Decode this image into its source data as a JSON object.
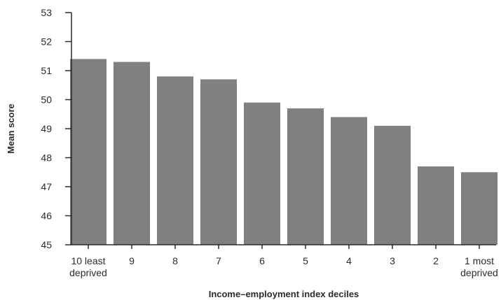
{
  "chart_data": {
    "type": "bar",
    "xlabel": "Income–employment index deciles",
    "ylabel": "Mean score",
    "ylim": [
      45,
      53
    ],
    "yticks": [
      45,
      46,
      47,
      48,
      49,
      50,
      51,
      52,
      53
    ],
    "grid": false,
    "categories": [
      [
        "10 least",
        "deprived"
      ],
      [
        "9"
      ],
      [
        "8"
      ],
      [
        "7"
      ],
      [
        "6"
      ],
      [
        "5"
      ],
      [
        "4"
      ],
      [
        "3"
      ],
      [
        "2"
      ],
      [
        "1 most",
        "deprived"
      ]
    ],
    "values": [
      51.4,
      51.3,
      50.8,
      50.7,
      49.9,
      49.7,
      49.4,
      49.1,
      47.7,
      47.5
    ],
    "colors": {
      "bar": "#808083",
      "axis": "#2b2b2b",
      "text": "#2b2b2b"
    }
  }
}
